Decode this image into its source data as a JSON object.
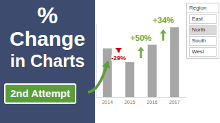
{
  "chart_data": {
    "type": "bar",
    "categories": [
      "2014",
      "2015",
      "2016",
      "2017"
    ],
    "values": [
      14,
      10,
      15,
      20
    ],
    "color": "#a6a6a6",
    "ylim": [
      0,
      21
    ],
    "grid": false,
    "tick_labels": "x",
    "annotations": [
      {
        "text": "-29%",
        "category": "2015",
        "color": "#c00000"
      },
      {
        "text": "+50%",
        "category": "2016",
        "color": "#70ad47"
      },
      {
        "text": "+34%",
        "category": "2017",
        "color": "#70ad47"
      }
    ]
  },
  "banner": {
    "lines": [
      "%",
      "Change",
      "in Charts"
    ],
    "badge": "2nd Attempt"
  },
  "slicer": {
    "title": "Region",
    "items": [
      "East",
      "North",
      "South",
      "West"
    ],
    "selected": "North"
  }
}
